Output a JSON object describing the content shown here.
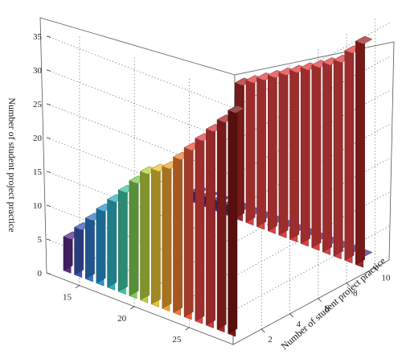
{
  "chart_data": {
    "type": "bar3d",
    "title": "",
    "zlabel": "Number of student project practice",
    "ylabel": "Number of student project practice",
    "xlabel": "",
    "xlim": [
      12,
      29
    ],
    "ylim": [
      0,
      11
    ],
    "zlim": [
      0,
      37
    ],
    "x_ticks": [
      15,
      20,
      25
    ],
    "y_ticks": [
      2,
      4,
      6,
      8,
      10
    ],
    "z_ticks": [
      0,
      5,
      10,
      15,
      20,
      25,
      30,
      35
    ],
    "grid": true,
    "series": [
      {
        "y": 1,
        "x": [
          13,
          14,
          15,
          16,
          17,
          18,
          19,
          20,
          21,
          22,
          23,
          24,
          25,
          26,
          27,
          28
        ],
        "values": [
          5,
          7,
          9,
          11,
          13,
          15,
          17,
          19,
          20,
          21,
          23,
          25,
          27,
          29,
          31,
          33
        ],
        "colors": [
          "#5b2a86",
          "#3a55b5",
          "#2f78c8",
          "#2794d3",
          "#2cb2c2",
          "#3cc5a4",
          "#7ccd52",
          "#b8d33c",
          "#e7c530",
          "#f0a32c",
          "#ef7d2d",
          "#e8563a",
          "#e04040",
          "#d43838",
          "#a72424",
          "#7c1414"
        ]
      },
      {
        "y": 10,
        "x": [
          13,
          14,
          15,
          16,
          17,
          18,
          19,
          20,
          21,
          22,
          23,
          24,
          25,
          26,
          27,
          28
        ],
        "values": [
          1.5,
          1.5,
          1.5,
          1.5,
          1.5,
          1.5,
          1.5,
          1.5,
          1.5,
          1.5,
          1.5,
          1.5,
          1.5,
          1.5,
          1.5,
          1.5
        ],
        "colors": [
          "#5b2a86",
          "#5b2a86",
          "#5b2a86",
          "#5b2a86",
          "#5b2a86",
          "#5b2a86",
          "#5b2a86",
          "#5b2a86",
          "#5b2a86",
          "#5b2a86",
          "#5b2a86",
          "#5b2a86",
          "#5b2a86",
          "#5b2a86",
          "#5b2a86",
          "#5b2a86"
        ]
      },
      {
        "y": 10,
        "x": [
          17,
          18,
          19,
          20,
          21,
          22,
          23,
          24,
          25,
          26,
          27,
          28
        ],
        "values": [
          20,
          21,
          22,
          23,
          24,
          25,
          26,
          27,
          28,
          29,
          31,
          33
        ],
        "colors": [
          "#a72424",
          "#e04040",
          "#e04040",
          "#e04040",
          "#e04040",
          "#e04040",
          "#e04040",
          "#e04040",
          "#e04040",
          "#e04040",
          "#e04040",
          "#a72424"
        ]
      }
    ]
  }
}
